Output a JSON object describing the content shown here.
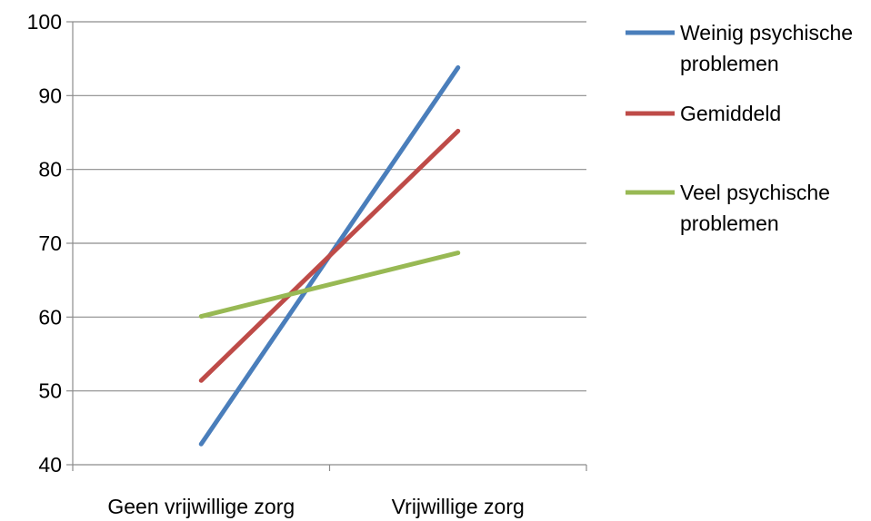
{
  "chart_data": {
    "type": "line",
    "categories": [
      "Geen vrijwillige zorg",
      "Vrijwillige zorg"
    ],
    "ylim": [
      40,
      100
    ],
    "yticks": [
      40,
      50,
      60,
      70,
      80,
      90,
      100
    ],
    "grid": true,
    "legend_position": "right",
    "series": [
      {
        "name": "Weinig psychische problemen",
        "legend_lines": [
          "Weinig psychische",
          "problemen"
        ],
        "color": "#4a7ebb",
        "values": [
          42.8,
          93.8
        ]
      },
      {
        "name": "Gemiddeld",
        "legend_lines": [
          "Gemiddeld"
        ],
        "color": "#be4b48",
        "values": [
          51.4,
          85.2
        ]
      },
      {
        "name": "Veel psychische problemen",
        "legend_lines": [
          "Veel psychische",
          "problemen"
        ],
        "color": "#98b954",
        "values": [
          60.1,
          68.7
        ]
      }
    ]
  }
}
